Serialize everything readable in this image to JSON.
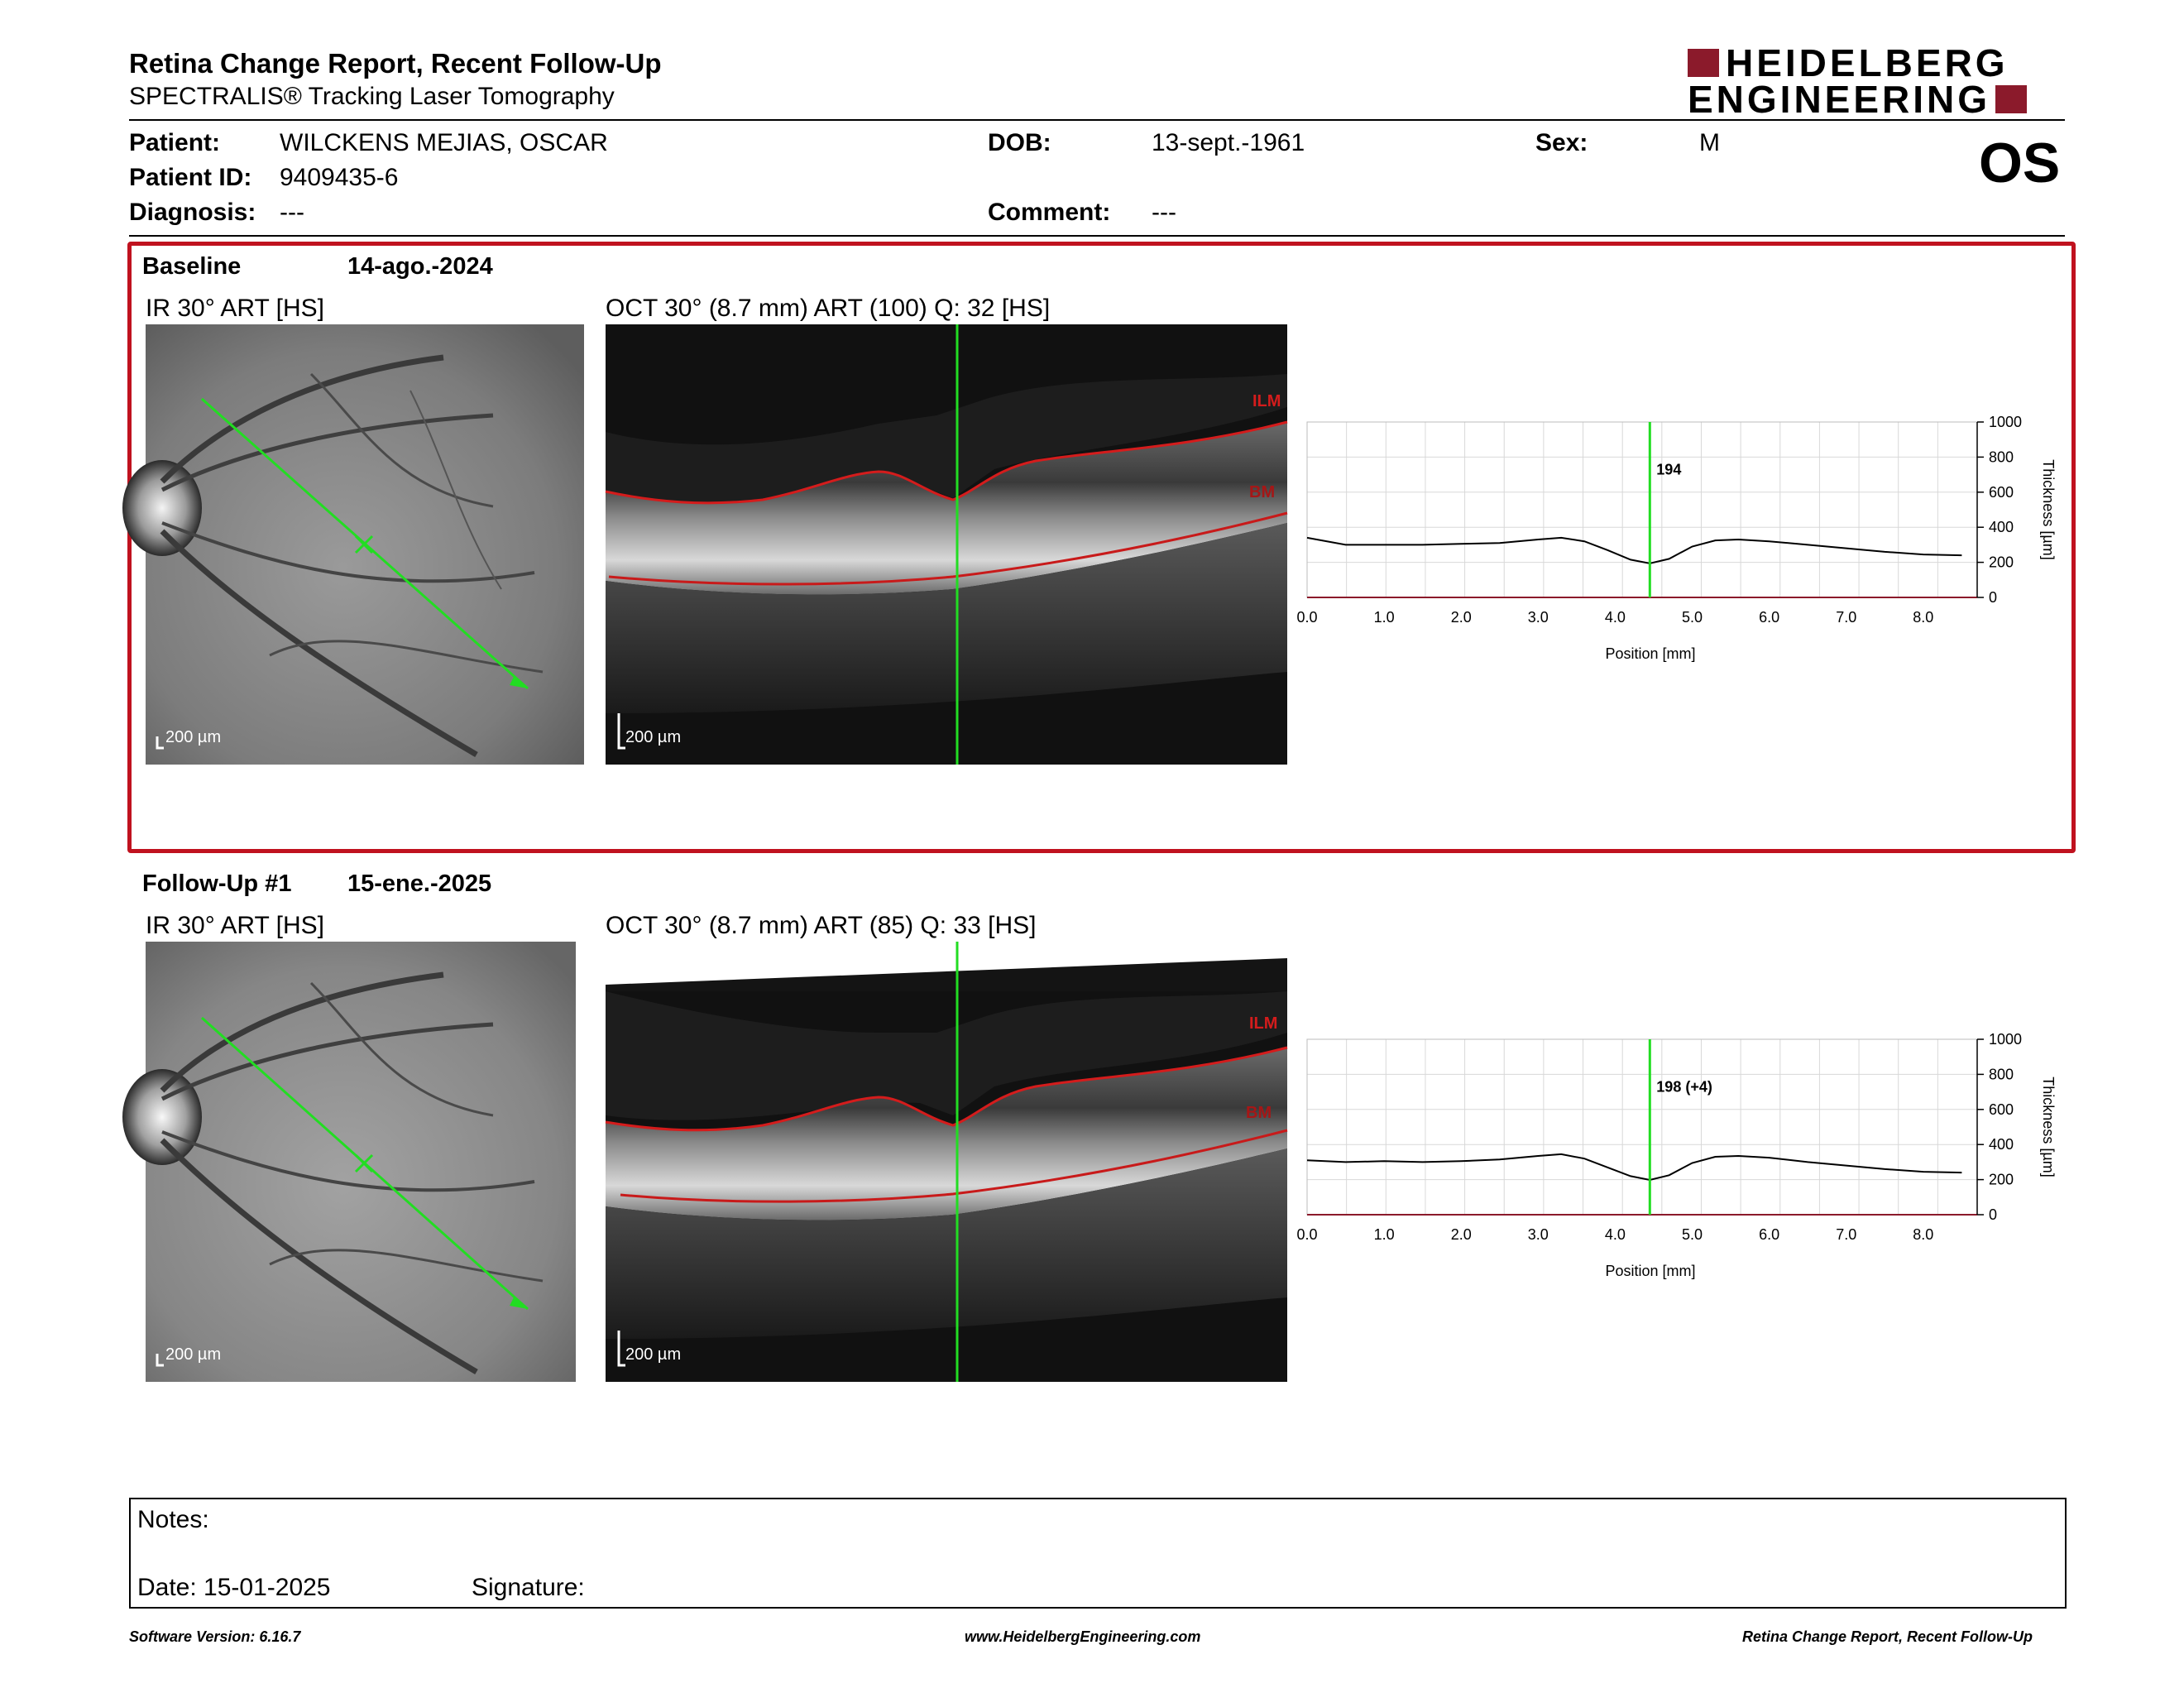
{
  "header": {
    "title": "Retina Change Report, Recent Follow-Up",
    "subtitle": "SPECTRALIS® Tracking Laser Tomography",
    "logo_line1": "HEIDELBERG",
    "logo_line2": "ENGINEERING",
    "eye": "OS"
  },
  "patient": {
    "name_label": "Patient:",
    "name": "WILCKENS MEJIAS, OSCAR",
    "id_label": "Patient ID:",
    "id": "9409435-6",
    "diagnosis_label": "Diagnosis:",
    "diagnosis": "---",
    "dob_label": "DOB:",
    "dob": "13-sept.-1961",
    "comment_label": "Comment:",
    "comment": "---",
    "sex_label": "Sex:",
    "sex": "M"
  },
  "sections": [
    {
      "label": "Baseline",
      "date": "14-ago.-2024",
      "ir_title": "IR 30° ART [HS]",
      "oct_title": "OCT 30° (8.7 mm) ART (100) Q: 32 [HS]",
      "ir_scale": "200 µm",
      "oct_scale": "200 µm",
      "ilm_label": "ILM",
      "bm_label": "BM",
      "value_label": "194"
    },
    {
      "label": "Follow-Up #1",
      "date": "15-ene.-2025",
      "ir_title": "IR 30° ART [HS]",
      "oct_title": "OCT 30° (8.7 mm) ART (85) Q: 33 [HS]",
      "ir_scale": "200 µm",
      "oct_scale": "200 µm",
      "ilm_label": "ILM",
      "bm_label": "BM",
      "value_label": "198 (+4)"
    }
  ],
  "chart_data": [
    {
      "type": "line",
      "xlabel": "Position [mm]",
      "ylabel": "Thickness [µm]",
      "xlim": [
        0,
        8.7
      ],
      "ylim": [
        0,
        1000
      ],
      "x_ticks": [
        "0.0",
        "1.0",
        "2.0",
        "3.0",
        "4.0",
        "5.0",
        "6.0",
        "7.0",
        "8.0"
      ],
      "y_ticks": [
        "0",
        "200",
        "400",
        "600",
        "800",
        "1000"
      ],
      "marker_x": 4.45,
      "marker_label": "194",
      "x": [
        0.0,
        0.5,
        1.0,
        1.5,
        2.0,
        2.5,
        3.0,
        3.3,
        3.6,
        3.9,
        4.2,
        4.45,
        4.7,
        5.0,
        5.3,
        5.6,
        6.0,
        6.5,
        7.0,
        7.5,
        8.0,
        8.5
      ],
      "values": [
        340,
        300,
        300,
        300,
        305,
        310,
        330,
        340,
        320,
        270,
        215,
        194,
        220,
        290,
        325,
        330,
        320,
        300,
        280,
        260,
        245,
        240
      ]
    },
    {
      "type": "line",
      "xlabel": "Position [mm]",
      "ylabel": "Thickness [µm]",
      "xlim": [
        0,
        8.7
      ],
      "ylim": [
        0,
        1000
      ],
      "x_ticks": [
        "0.0",
        "1.0",
        "2.0",
        "3.0",
        "4.0",
        "5.0",
        "6.0",
        "7.0",
        "8.0"
      ],
      "y_ticks": [
        "0",
        "200",
        "400",
        "600",
        "800",
        "1000"
      ],
      "marker_x": 4.45,
      "marker_label": "198 (+4)",
      "x": [
        0.0,
        0.5,
        1.0,
        1.5,
        2.0,
        2.5,
        3.0,
        3.3,
        3.6,
        3.9,
        4.2,
        4.45,
        4.7,
        5.0,
        5.3,
        5.6,
        6.0,
        6.5,
        7.0,
        7.5,
        8.0,
        8.5
      ],
      "values": [
        310,
        300,
        305,
        300,
        305,
        315,
        335,
        345,
        320,
        270,
        220,
        198,
        225,
        295,
        330,
        335,
        325,
        300,
        280,
        260,
        245,
        240
      ]
    }
  ],
  "notes": {
    "notes_label": "Notes:",
    "date_label": "Date: 15-01-2025",
    "signature_label": "Signature:"
  },
  "footer": {
    "left": "Software Version: 6.16.7",
    "center": "www.HeidelbergEngineering.com",
    "right": "Retina Change Report, Recent Follow-Up"
  }
}
